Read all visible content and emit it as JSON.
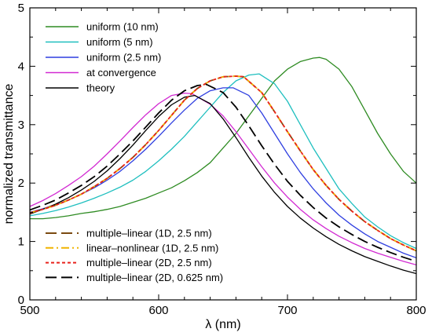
{
  "chart_data": {
    "type": "line",
    "xlabel": "λ (nm)",
    "ylabel": "normalized transmittance",
    "xlim": [
      500,
      800
    ],
    "ylim": [
      0,
      5
    ],
    "xticks": [
      500,
      600,
      700,
      800
    ],
    "yticks": [
      0,
      1,
      2,
      3,
      4,
      5
    ],
    "grid": false,
    "legend_top_placement": "top-left",
    "legend_bottom_placement": "bottom-left",
    "series": [
      {
        "name": "uniform (10 nm)",
        "color": "#2e8b22",
        "dash": "solid",
        "legend_group": "top",
        "x": [
          500,
          510,
          520,
          530,
          540,
          550,
          560,
          570,
          580,
          590,
          600,
          610,
          620,
          630,
          640,
          650,
          660,
          670,
          680,
          690,
          700,
          710,
          720,
          725,
          730,
          740,
          750,
          760,
          770,
          780,
          790,
          800
        ],
        "y": [
          1.39,
          1.39,
          1.41,
          1.44,
          1.48,
          1.51,
          1.55,
          1.6,
          1.67,
          1.74,
          1.83,
          1.92,
          2.04,
          2.18,
          2.35,
          2.6,
          2.85,
          3.15,
          3.45,
          3.75,
          3.95,
          4.08,
          4.14,
          4.15,
          4.12,
          3.95,
          3.65,
          3.25,
          2.85,
          2.5,
          2.2,
          2.0
        ]
      },
      {
        "name": "uniform (5 nm)",
        "color": "#1fbfbf",
        "dash": "solid",
        "legend_group": "top",
        "x": [
          500,
          510,
          520,
          530,
          540,
          550,
          560,
          570,
          580,
          590,
          600,
          610,
          620,
          630,
          640,
          650,
          660,
          670,
          678,
          690,
          700,
          710,
          720,
          730,
          740,
          750,
          760,
          770,
          780,
          790,
          800
        ],
        "y": [
          1.44,
          1.48,
          1.53,
          1.59,
          1.66,
          1.74,
          1.83,
          1.93,
          2.05,
          2.2,
          2.38,
          2.58,
          2.8,
          3.05,
          3.3,
          3.55,
          3.75,
          3.85,
          3.87,
          3.7,
          3.4,
          3.0,
          2.6,
          2.25,
          1.9,
          1.65,
          1.42,
          1.25,
          1.1,
          0.98,
          0.88
        ]
      },
      {
        "name": "uniform (2.5 nm)",
        "color": "#2f3fe0",
        "dash": "solid",
        "legend_group": "top",
        "x": [
          500,
          510,
          520,
          530,
          540,
          550,
          560,
          570,
          580,
          590,
          600,
          610,
          620,
          630,
          640,
          650,
          658,
          670,
          680,
          690,
          700,
          710,
          720,
          730,
          740,
          750,
          760,
          770,
          780,
          790,
          800
        ],
        "y": [
          1.5,
          1.56,
          1.63,
          1.71,
          1.81,
          1.92,
          2.05,
          2.2,
          2.38,
          2.58,
          2.8,
          3.03,
          3.25,
          3.45,
          3.58,
          3.63,
          3.63,
          3.5,
          3.2,
          2.85,
          2.5,
          2.18,
          1.9,
          1.66,
          1.45,
          1.28,
          1.13,
          1.0,
          0.9,
          0.8,
          0.72
        ]
      },
      {
        "name": "at convergence",
        "color": "#d22ad2",
        "dash": "solid",
        "legend_group": "top",
        "x": [
          500,
          510,
          520,
          530,
          540,
          550,
          560,
          570,
          580,
          590,
          600,
          610,
          620,
          626,
          640,
          650,
          660,
          670,
          680,
          690,
          700,
          710,
          720,
          730,
          740,
          750,
          760,
          770,
          780,
          790,
          800
        ],
        "y": [
          1.6,
          1.7,
          1.82,
          1.96,
          2.11,
          2.29,
          2.5,
          2.72,
          2.95,
          3.17,
          3.36,
          3.5,
          3.54,
          3.53,
          3.35,
          3.15,
          2.88,
          2.58,
          2.28,
          2.0,
          1.76,
          1.55,
          1.37,
          1.22,
          1.09,
          0.98,
          0.88,
          0.8,
          0.73,
          0.66,
          0.6
        ]
      },
      {
        "name": "theory",
        "color": "#000000",
        "dash": "solid",
        "legend_group": "top",
        "x": [
          500,
          510,
          520,
          530,
          540,
          550,
          560,
          570,
          580,
          590,
          600,
          610,
          620,
          628,
          640,
          650,
          660,
          670,
          680,
          690,
          700,
          710,
          720,
          730,
          740,
          750,
          760,
          770,
          780,
          790,
          800
        ],
        "y": [
          1.47,
          1.55,
          1.64,
          1.75,
          1.88,
          2.03,
          2.21,
          2.42,
          2.65,
          2.9,
          3.14,
          3.34,
          3.47,
          3.5,
          3.36,
          3.1,
          2.78,
          2.44,
          2.12,
          1.84,
          1.6,
          1.4,
          1.23,
          1.08,
          0.95,
          0.84,
          0.74,
          0.66,
          0.58,
          0.51,
          0.45
        ]
      },
      {
        "name": "multiple–linear (1D, 2.5 nm)",
        "color": "#7a4a10",
        "dash": "long",
        "legend_group": "bottom",
        "x": [
          500,
          510,
          520,
          530,
          540,
          550,
          560,
          570,
          580,
          590,
          600,
          610,
          620,
          630,
          640,
          650,
          660,
          666,
          680,
          690,
          700,
          710,
          720,
          730,
          740,
          750,
          760,
          770,
          780,
          790,
          800
        ],
        "y": [
          1.49,
          1.55,
          1.62,
          1.71,
          1.81,
          1.94,
          2.08,
          2.25,
          2.44,
          2.66,
          2.9,
          3.16,
          3.42,
          3.62,
          3.75,
          3.82,
          3.83,
          3.82,
          3.55,
          3.22,
          2.88,
          2.55,
          2.23,
          1.96,
          1.72,
          1.52,
          1.34,
          1.19,
          1.05,
          0.94,
          0.84
        ]
      },
      {
        "name": "linear–nonlinear (1D, 2.5 nm)",
        "color": "#f0b400",
        "dash": "dashdot",
        "legend_group": "bottom",
        "x": [
          500,
          510,
          520,
          530,
          540,
          550,
          560,
          570,
          580,
          590,
          600,
          610,
          620,
          630,
          640,
          650,
          660,
          666,
          680,
          690,
          700,
          710,
          720,
          730,
          740,
          750,
          760,
          770,
          780,
          790,
          800
        ],
        "y": [
          1.49,
          1.55,
          1.62,
          1.71,
          1.81,
          1.94,
          2.08,
          2.25,
          2.44,
          2.66,
          2.9,
          3.16,
          3.42,
          3.62,
          3.75,
          3.82,
          3.83,
          3.82,
          3.55,
          3.22,
          2.88,
          2.55,
          2.23,
          1.96,
          1.72,
          1.52,
          1.34,
          1.19,
          1.05,
          0.94,
          0.84
        ]
      },
      {
        "name": "multiple–linear (2D, 2.5 nm)",
        "color": "#e8231c",
        "dash": "dotted",
        "legend_group": "bottom",
        "x": [
          500,
          510,
          520,
          530,
          540,
          550,
          560,
          570,
          580,
          590,
          600,
          610,
          620,
          630,
          640,
          650,
          660,
          666,
          680,
          690,
          700,
          710,
          720,
          730,
          740,
          750,
          760,
          770,
          780,
          790,
          800
        ],
        "y": [
          1.49,
          1.55,
          1.62,
          1.71,
          1.81,
          1.94,
          2.08,
          2.25,
          2.44,
          2.66,
          2.9,
          3.16,
          3.42,
          3.62,
          3.75,
          3.82,
          3.83,
          3.82,
          3.55,
          3.22,
          2.88,
          2.55,
          2.23,
          1.96,
          1.72,
          1.52,
          1.34,
          1.19,
          1.05,
          0.94,
          0.84
        ]
      },
      {
        "name": "multiple–linear (2D, 0.625 nm)",
        "color": "#000000",
        "dash": "long",
        "legend_group": "bottom",
        "x": [
          500,
          510,
          520,
          530,
          540,
          550,
          560,
          570,
          580,
          590,
          600,
          610,
          620,
          630,
          637,
          650,
          660,
          670,
          680,
          690,
          700,
          710,
          720,
          730,
          740,
          750,
          760,
          770,
          780,
          790,
          800
        ],
        "y": [
          1.54,
          1.62,
          1.71,
          1.83,
          1.96,
          2.11,
          2.29,
          2.5,
          2.72,
          2.96,
          3.2,
          3.42,
          3.58,
          3.67,
          3.69,
          3.55,
          3.3,
          2.98,
          2.64,
          2.32,
          2.03,
          1.79,
          1.58,
          1.4,
          1.25,
          1.12,
          1.0,
          0.9,
          0.81,
          0.73,
          0.66
        ]
      }
    ]
  }
}
